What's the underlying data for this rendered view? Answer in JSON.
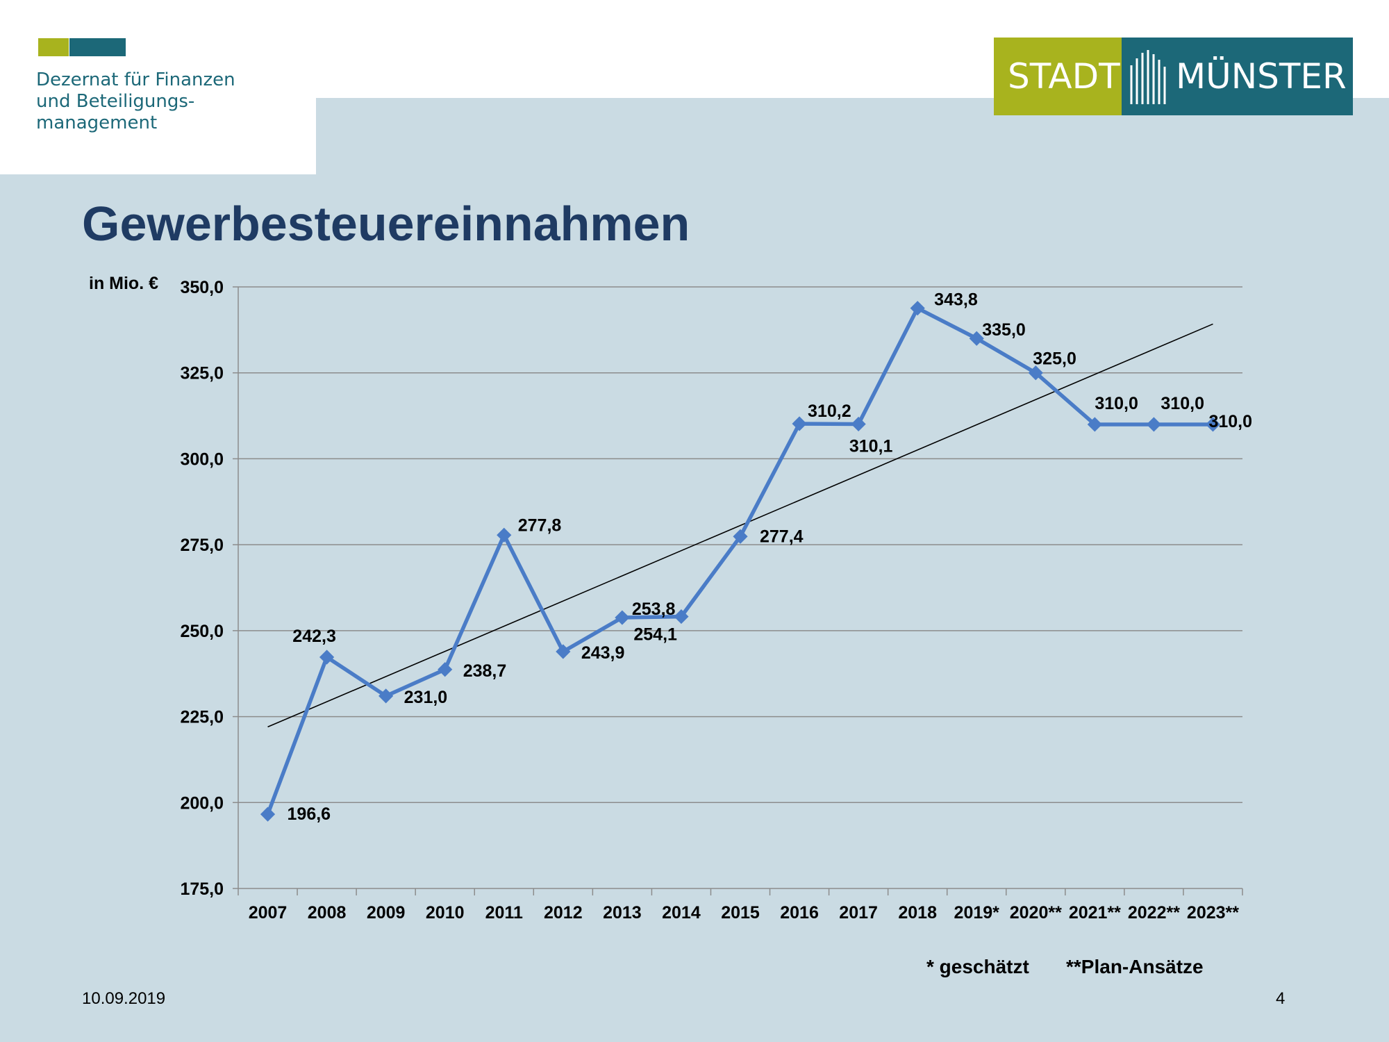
{
  "header": {
    "department_lines": [
      "Dezernat für Finanzen",
      "und Beteiligungs-",
      "management"
    ],
    "logo_left": "STADT",
    "logo_right": "MÜNSTER",
    "title": "Gewerbesteuereinnahmen"
  },
  "colors": {
    "brand_green": "#a8b31e",
    "brand_teal": "#1c6878",
    "panel": "#cadbe3",
    "series": "#4a7cc7",
    "title": "#1f3b63"
  },
  "chart_data": {
    "type": "line",
    "title": "Gewerbesteuereinnahmen",
    "xlabel": "",
    "ylabel": "in Mio. €",
    "ylim": [
      175,
      350
    ],
    "y_ticks": [
      "350,0",
      "325,0",
      "300,0",
      "275,0",
      "250,0",
      "225,0",
      "200,0",
      "175,0"
    ],
    "categories": [
      "2007",
      "2008",
      "2009",
      "2010",
      "2011",
      "2012",
      "2013",
      "2014",
      "2015",
      "2016",
      "2017",
      "2018",
      "2019*",
      "2020**",
      "2021**",
      "2022**",
      "2023**"
    ],
    "series": [
      {
        "name": "",
        "values": [
          196.6,
          242.3,
          231.0,
          238.7,
          277.8,
          243.9,
          253.8,
          254.1,
          277.4,
          310.2,
          310.1,
          343.8,
          335.0,
          325.0,
          310.0,
          310.0,
          310.0
        ],
        "labels": [
          "196,6",
          "242,3",
          "231,0",
          "238,7",
          "277,8",
          "243,9",
          "253,8",
          "254,1",
          "277,4",
          "310,2",
          "310,1",
          "343,8",
          "335,0",
          "325,0",
          "310,0",
          "310,0",
          "310,0"
        ]
      }
    ],
    "trendline": {
      "start": 222.0,
      "end": 339.2
    },
    "grid": true,
    "legend": "none"
  },
  "notes": {
    "estimated": "* geschätzt",
    "planned": "**Plan-Ansätze"
  },
  "footer": {
    "date": "10.09.2019",
    "page": "4"
  }
}
